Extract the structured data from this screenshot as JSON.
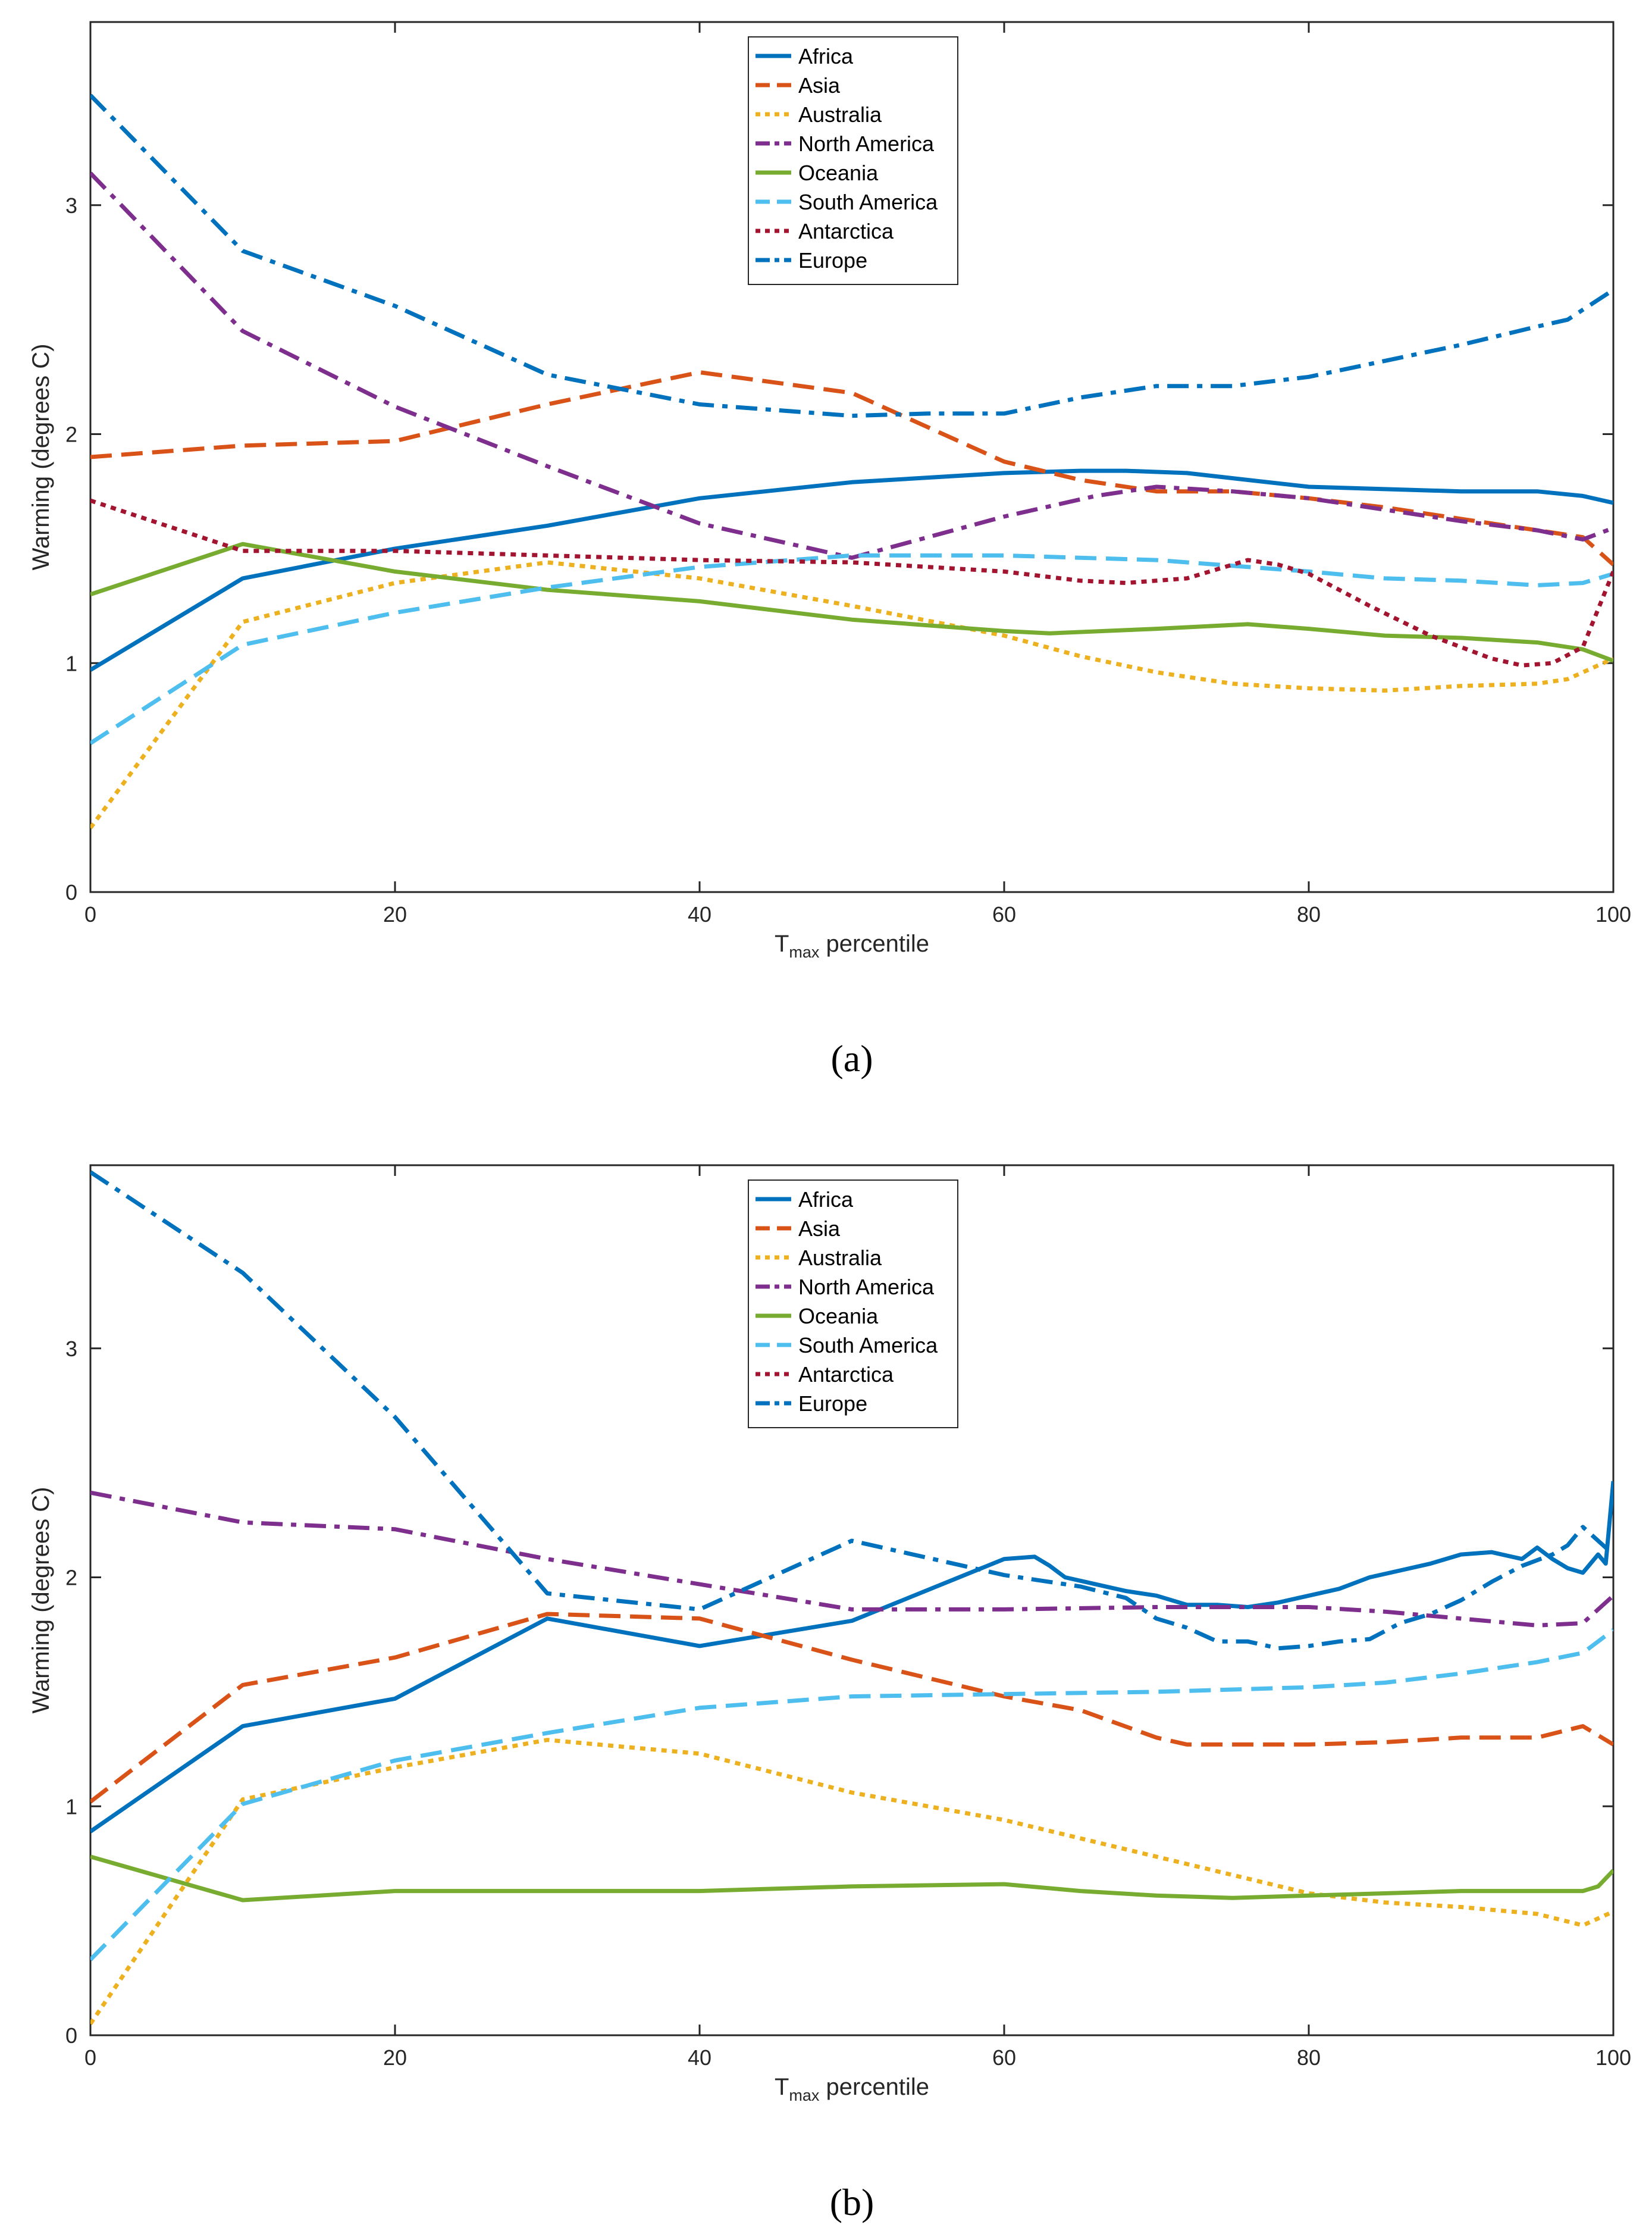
{
  "chart_data": [
    {
      "type": "line",
      "caption": "(a)",
      "xlabel": {
        "main": "T",
        "sub": "max",
        "rest": " percentile"
      },
      "ylabel": "Warming (degrees C)",
      "xlim": [
        0,
        100
      ],
      "ylim": [
        0,
        3.8
      ],
      "xticks": [
        0,
        20,
        40,
        60,
        80,
        100
      ],
      "yticks": [
        0,
        1,
        2,
        3
      ],
      "legend_position": "top-center",
      "series": [
        {
          "name": "Africa",
          "color": "#0072BD",
          "style": "solid",
          "x": [
            0,
            10,
            20,
            30,
            40,
            50,
            60,
            65,
            68,
            72,
            76,
            80,
            85,
            90,
            95,
            98,
            100
          ],
          "y": [
            0.97,
            1.37,
            1.5,
            1.6,
            1.72,
            1.79,
            1.83,
            1.84,
            1.84,
            1.83,
            1.8,
            1.77,
            1.76,
            1.75,
            1.75,
            1.73,
            1.7
          ]
        },
        {
          "name": "Asia",
          "color": "#D95319",
          "style": "dashed",
          "x": [
            0,
            10,
            20,
            30,
            40,
            50,
            60,
            65,
            70,
            75,
            80,
            85,
            90,
            95,
            98,
            100
          ],
          "y": [
            1.9,
            1.95,
            1.97,
            2.13,
            2.27,
            2.18,
            1.88,
            1.8,
            1.75,
            1.75,
            1.72,
            1.68,
            1.63,
            1.58,
            1.55,
            1.43
          ]
        },
        {
          "name": "Australia",
          "color": "#EDB120",
          "style": "dotted",
          "x": [
            0,
            10,
            20,
            30,
            40,
            50,
            60,
            65,
            70,
            75,
            80,
            85,
            90,
            95,
            97,
            100
          ],
          "y": [
            0.28,
            1.18,
            1.35,
            1.44,
            1.37,
            1.25,
            1.12,
            1.03,
            0.96,
            0.91,
            0.89,
            0.88,
            0.9,
            0.91,
            0.93,
            1.02
          ]
        },
        {
          "name": "North America",
          "color": "#7E2F8E",
          "style": "dash-dot",
          "x": [
            0,
            10,
            20,
            30,
            40,
            50,
            60,
            66,
            70,
            75,
            80,
            85,
            90,
            95,
            98,
            100
          ],
          "y": [
            3.14,
            2.45,
            2.12,
            1.86,
            1.61,
            1.46,
            1.64,
            1.73,
            1.77,
            1.75,
            1.72,
            1.67,
            1.62,
            1.58,
            1.54,
            1.59
          ]
        },
        {
          "name": "Oceania",
          "color": "#77AC30",
          "style": "solid",
          "x": [
            0,
            10,
            20,
            30,
            40,
            50,
            60,
            63,
            70,
            76,
            80,
            85,
            90,
            95,
            98,
            100
          ],
          "y": [
            1.3,
            1.52,
            1.4,
            1.32,
            1.27,
            1.19,
            1.14,
            1.13,
            1.15,
            1.17,
            1.15,
            1.12,
            1.11,
            1.09,
            1.06,
            1.01
          ]
        },
        {
          "name": "South America",
          "color": "#4DBEEE",
          "style": "dashed",
          "x": [
            0,
            10,
            20,
            30,
            40,
            50,
            60,
            70,
            80,
            85,
            90,
            95,
            98,
            100
          ],
          "y": [
            0.65,
            1.08,
            1.22,
            1.33,
            1.42,
            1.47,
            1.47,
            1.45,
            1.4,
            1.37,
            1.36,
            1.34,
            1.35,
            1.39
          ]
        },
        {
          "name": "Antarctica",
          "color": "#A2142F",
          "style": "dotted",
          "x": [
            0,
            10,
            20,
            30,
            40,
            50,
            60,
            65,
            68,
            72,
            76,
            78,
            80,
            84,
            88,
            92,
            94,
            96,
            98,
            100
          ],
          "y": [
            1.71,
            1.49,
            1.49,
            1.47,
            1.45,
            1.44,
            1.4,
            1.36,
            1.35,
            1.37,
            1.45,
            1.43,
            1.39,
            1.25,
            1.12,
            1.02,
            0.99,
            1.0,
            1.07,
            1.4
          ]
        },
        {
          "name": "Europe",
          "color": "#0072BD",
          "style": "dash-dot",
          "x": [
            0,
            10,
            20,
            30,
            40,
            50,
            55,
            60,
            65,
            70,
            75,
            80,
            85,
            90,
            95,
            97,
            100
          ],
          "y": [
            3.48,
            2.8,
            2.56,
            2.26,
            2.13,
            2.08,
            2.09,
            2.09,
            2.16,
            2.21,
            2.21,
            2.25,
            2.32,
            2.39,
            2.47,
            2.5,
            2.63
          ]
        }
      ]
    },
    {
      "type": "line",
      "caption": "(b)",
      "xlabel": {
        "main": "T",
        "sub": "max",
        "rest": " percentile"
      },
      "ylabel": "Warming (degrees C)",
      "xlim": [
        0,
        100
      ],
      "ylim": [
        0,
        3.8
      ],
      "xticks": [
        0,
        20,
        40,
        60,
        80,
        100
      ],
      "yticks": [
        0,
        1,
        2,
        3
      ],
      "legend_position": "top-center",
      "series": [
        {
          "name": "Africa",
          "color": "#0072BD",
          "style": "solid",
          "x": [
            0,
            10,
            20,
            30,
            40,
            50,
            60,
            62,
            63,
            64,
            66,
            68,
            70,
            72,
            74,
            76,
            78,
            80,
            82,
            84,
            86,
            88,
            90,
            92,
            94,
            95,
            96,
            97,
            98,
            99,
            99.5,
            100
          ],
          "y": [
            0.89,
            1.35,
            1.47,
            1.82,
            1.7,
            1.81,
            2.08,
            2.09,
            2.05,
            2.0,
            1.97,
            1.94,
            1.92,
            1.88,
            1.88,
            1.87,
            1.89,
            1.92,
            1.95,
            2.0,
            2.03,
            2.06,
            2.1,
            2.11,
            2.08,
            2.13,
            2.08,
            2.04,
            2.02,
            2.1,
            2.06,
            2.42
          ]
        },
        {
          "name": "Asia",
          "color": "#D95319",
          "style": "dashed",
          "x": [
            0,
            10,
            20,
            30,
            40,
            50,
            60,
            65,
            70,
            72,
            75,
            80,
            85,
            90,
            95,
            98,
            100
          ],
          "y": [
            1.02,
            1.53,
            1.65,
            1.84,
            1.82,
            1.64,
            1.48,
            1.42,
            1.3,
            1.27,
            1.27,
            1.27,
            1.28,
            1.3,
            1.3,
            1.35,
            1.27
          ]
        },
        {
          "name": "Australia",
          "color": "#EDB120",
          "style": "dotted",
          "x": [
            0,
            10,
            20,
            30,
            40,
            50,
            60,
            65,
            70,
            75,
            80,
            85,
            90,
            95,
            98,
            100
          ],
          "y": [
            0.05,
            1.03,
            1.17,
            1.29,
            1.23,
            1.06,
            0.94,
            0.86,
            0.78,
            0.7,
            0.62,
            0.58,
            0.56,
            0.53,
            0.48,
            0.54
          ]
        },
        {
          "name": "North America",
          "color": "#7E2F8E",
          "style": "dash-dot",
          "x": [
            0,
            10,
            20,
            30,
            40,
            50,
            60,
            70,
            80,
            85,
            90,
            95,
            98,
            100
          ],
          "y": [
            2.37,
            2.24,
            2.21,
            2.08,
            1.97,
            1.86,
            1.86,
            1.87,
            1.87,
            1.85,
            1.82,
            1.79,
            1.8,
            1.92
          ]
        },
        {
          "name": "Oceania",
          "color": "#77AC30",
          "style": "solid",
          "x": [
            0,
            10,
            20,
            30,
            40,
            50,
            60,
            65,
            70,
            75,
            80,
            85,
            90,
            95,
            98,
            99,
            100
          ],
          "y": [
            0.78,
            0.59,
            0.63,
            0.63,
            0.63,
            0.65,
            0.66,
            0.63,
            0.61,
            0.6,
            0.61,
            0.62,
            0.63,
            0.63,
            0.63,
            0.65,
            0.72
          ]
        },
        {
          "name": "South America",
          "color": "#4DBEEE",
          "style": "dashed",
          "x": [
            0,
            10,
            20,
            30,
            40,
            50,
            60,
            70,
            80,
            85,
            90,
            95,
            98,
            100
          ],
          "y": [
            0.33,
            1.01,
            1.2,
            1.32,
            1.43,
            1.48,
            1.49,
            1.5,
            1.52,
            1.54,
            1.58,
            1.63,
            1.67,
            1.77
          ]
        },
        {
          "name": "Antarctica",
          "color": "#A2142F",
          "style": "dotted",
          "x": [],
          "y": []
        },
        {
          "name": "Europe",
          "color": "#0072BD",
          "style": "dash-dot",
          "x": [
            0,
            10,
            20,
            30,
            40,
            50,
            60,
            62,
            65,
            68,
            70,
            72,
            74,
            76,
            78,
            80,
            82,
            84,
            86,
            88,
            90,
            92,
            94,
            96,
            97,
            98,
            99,
            100
          ],
          "y": [
            3.77,
            3.33,
            2.7,
            1.93,
            1.86,
            2.16,
            2.01,
            1.99,
            1.96,
            1.91,
            1.82,
            1.78,
            1.72,
            1.72,
            1.69,
            1.7,
            1.72,
            1.73,
            1.8,
            1.84,
            1.9,
            1.98,
            2.05,
            2.1,
            2.14,
            2.22,
            2.16,
            2.1
          ]
        }
      ]
    }
  ]
}
